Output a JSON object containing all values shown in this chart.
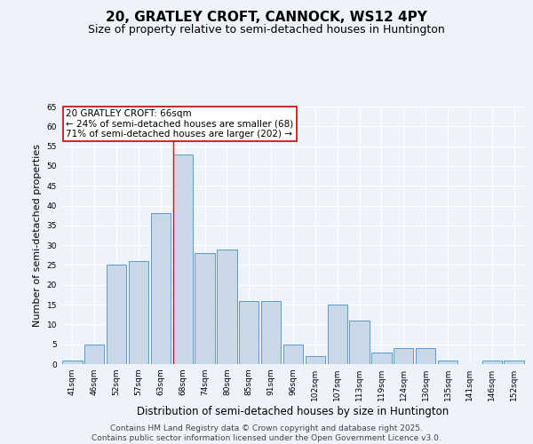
{
  "title": "20, GRATLEY CROFT, CANNOCK, WS12 4PY",
  "subtitle": "Size of property relative to semi-detached houses in Huntington",
  "xlabel": "Distribution of semi-detached houses by size in Huntington",
  "ylabel": "Number of semi-detached properties",
  "categories": [
    "41sqm",
    "46sqm",
    "52sqm",
    "57sqm",
    "63sqm",
    "68sqm",
    "74sqm",
    "80sqm",
    "85sqm",
    "91sqm",
    "96sqm",
    "102sqm",
    "107sqm",
    "113sqm",
    "119sqm",
    "124sqm",
    "130sqm",
    "135sqm",
    "141sqm",
    "146sqm",
    "152sqm"
  ],
  "values": [
    1,
    5,
    25,
    26,
    38,
    53,
    28,
    29,
    16,
    16,
    5,
    2,
    15,
    11,
    3,
    4,
    4,
    1,
    0,
    1,
    1
  ],
  "bar_color": "#c8d8e8",
  "bar_edge_color": "#5a9cc8",
  "highlight_index": 5,
  "annotation_text": "20 GRATLEY CROFT: 66sqm\n← 24% of semi-detached houses are smaller (68)\n71% of semi-detached houses are larger (202) →",
  "annotation_box_color": "#ffffff",
  "annotation_box_edge": "#cc0000",
  "ylim": [
    0,
    65
  ],
  "yticks": [
    0,
    5,
    10,
    15,
    20,
    25,
    30,
    35,
    40,
    45,
    50,
    55,
    60,
    65
  ],
  "background_color": "#eef2fb",
  "grid_color": "#ffffff",
  "footer_line1": "Contains HM Land Registry data © Crown copyright and database right 2025.",
  "footer_line2": "Contains public sector information licensed under the Open Government Licence v3.0.",
  "title_fontsize": 11,
  "subtitle_fontsize": 9,
  "xlabel_fontsize": 8.5,
  "ylabel_fontsize": 8,
  "tick_fontsize": 6.5,
  "annotation_fontsize": 7.5,
  "footer_fontsize": 6.5
}
